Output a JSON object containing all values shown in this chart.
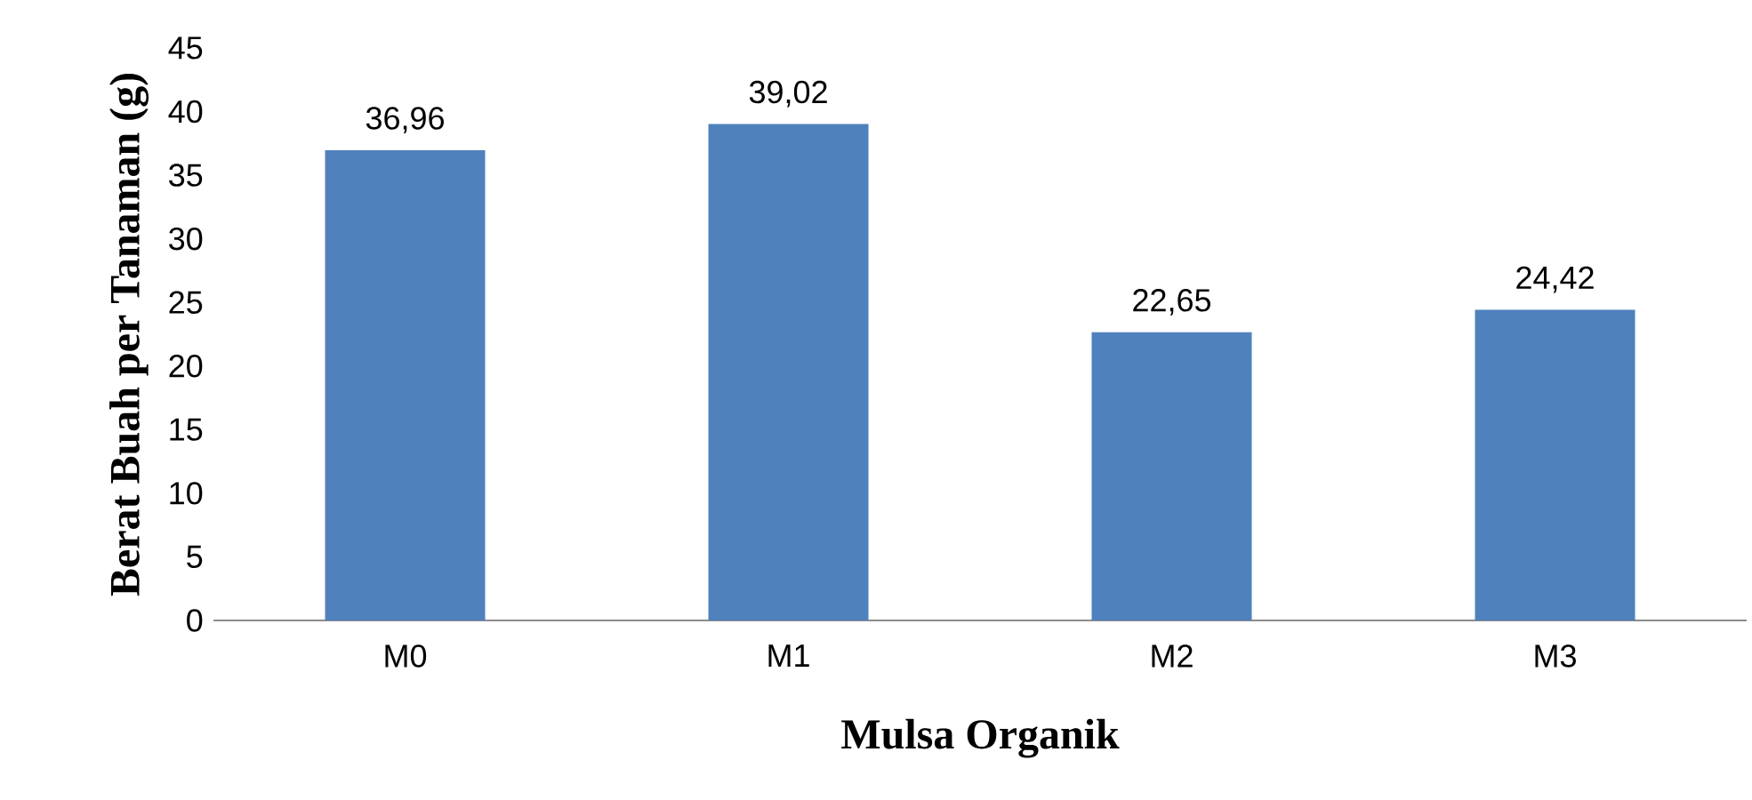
{
  "chart_data": {
    "type": "bar",
    "xlabel": "Mulsa Organik",
    "ylabel": "Berat Buah per Tanaman (g)",
    "categories": [
      "M0",
      "M1",
      "M2",
      "M3"
    ],
    "values": [
      36.96,
      39.02,
      22.65,
      24.42
    ],
    "value_labels": [
      "36,96",
      "39,02",
      "22,65",
      "24,42"
    ],
    "color": "#4f81bd",
    "ylim": [
      0,
      45
    ],
    "yticks": [
      0,
      5,
      10,
      15,
      20,
      25,
      30,
      35,
      40,
      45
    ]
  }
}
